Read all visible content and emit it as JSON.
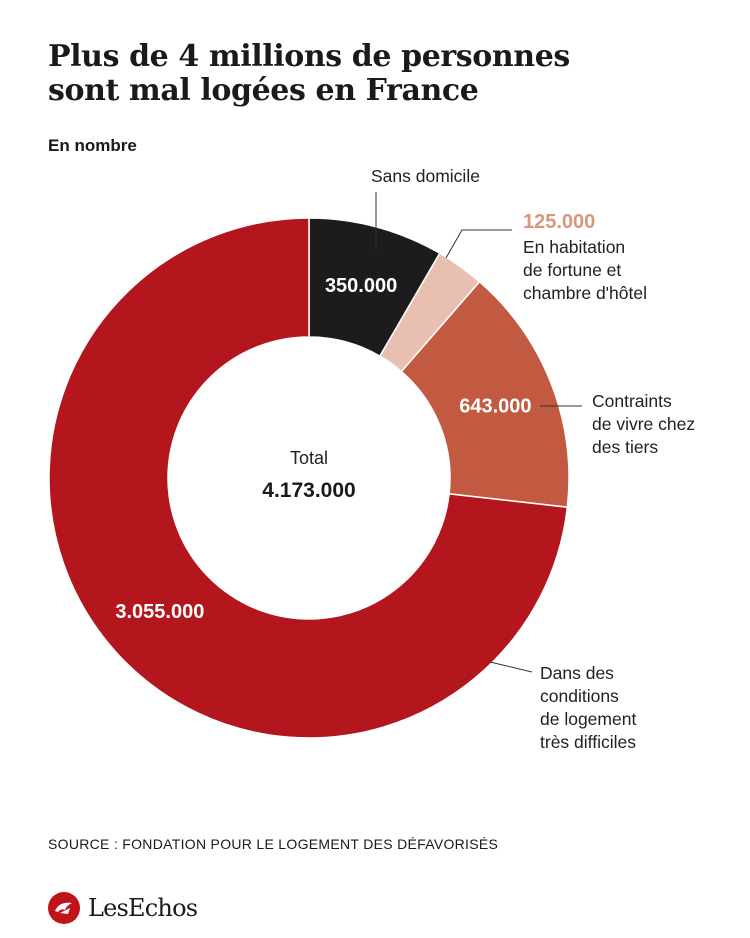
{
  "title_lines": [
    "Plus de 4 millions de personnes",
    "sont mal logées en France"
  ],
  "subtitle": "En nombre",
  "chart_data": {
    "type": "pie",
    "variant": "donut",
    "center_label": "Total",
    "center_value": "4.173.000",
    "total": 4173000,
    "slices": [
      {
        "label_lines": [
          "Sans domicile"
        ],
        "value": 350000,
        "value_text": "350.000",
        "color": "#1c1c1c",
        "value_color": "#ffffff",
        "value_placement": "inside"
      },
      {
        "label_lines": [
          "En habitation",
          "de fortune et",
          "chambre d'hôtel"
        ],
        "value": 125000,
        "value_text": "125.000",
        "color": "#e9bfb2",
        "value_color": "#d9967c",
        "value_placement": "outside"
      },
      {
        "label_lines": [
          "Contraints",
          "de vivre chez",
          "des tiers"
        ],
        "value": 643000,
        "value_text": "643.000",
        "color": "#c25a41",
        "value_color": "#ffffff",
        "value_placement": "inside"
      },
      {
        "label_lines": [
          "Dans des",
          "conditions",
          "de logement",
          "très difficiles"
        ],
        "value": 3055000,
        "value_text": "3.055.000",
        "color": "#b3161d",
        "value_color": "#ffffff",
        "value_placement": "inside"
      }
    ]
  },
  "source": "SOURCE : FONDATION POUR LE LOGEMENT DES DÉFAVORISÉS",
  "brand": {
    "name": "LesEchos",
    "color": "#c0141b",
    "icon": "les-echos-logo-icon"
  }
}
